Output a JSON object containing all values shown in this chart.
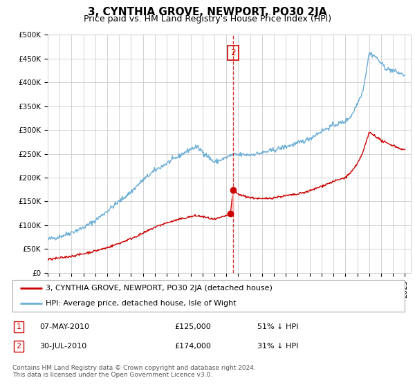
{
  "title": "3, CYNTHIA GROVE, NEWPORT, PO30 2JA",
  "subtitle": "Price paid vs. HM Land Registry's House Price Index (HPI)",
  "ylim": [
    0,
    500000
  ],
  "yticks": [
    0,
    50000,
    100000,
    150000,
    200000,
    250000,
    300000,
    350000,
    400000,
    450000,
    500000
  ],
  "ytick_labels": [
    "£0",
    "£50K",
    "£100K",
    "£150K",
    "£200K",
    "£250K",
    "£300K",
    "£350K",
    "£400K",
    "£450K",
    "£500K"
  ],
  "xlim_start": 1995.0,
  "xlim_end": 2025.5,
  "hpi_color": "#6baed6",
  "price_color": "#cc0000",
  "vline_color": "#cc0000",
  "background_color": "#ffffff",
  "grid_color": "#cccccc",
  "transaction1_date": 2010.35,
  "transaction1_price": 125000,
  "transaction2_date": 2010.58,
  "transaction2_price": 174000,
  "vline_date": 2010.58,
  "legend_label_price": "3, CYNTHIA GROVE, NEWPORT, PO30 2JA (detached house)",
  "legend_label_hpi": "HPI: Average price, detached house, Isle of Wight",
  "table_row1": [
    "1",
    "07-MAY-2010",
    "£125,000",
    "51% ↓ HPI"
  ],
  "table_row2": [
    "2",
    "30-JUL-2010",
    "£174,000",
    "31% ↓ HPI"
  ],
  "footer": "Contains HM Land Registry data © Crown copyright and database right 2024.\nThis data is licensed under the Open Government Licence v3.0.",
  "title_fontsize": 11,
  "subtitle_fontsize": 9,
  "tick_fontsize": 7.5,
  "legend_fontsize": 8,
  "table_fontsize": 8,
  "footer_fontsize": 6.5
}
